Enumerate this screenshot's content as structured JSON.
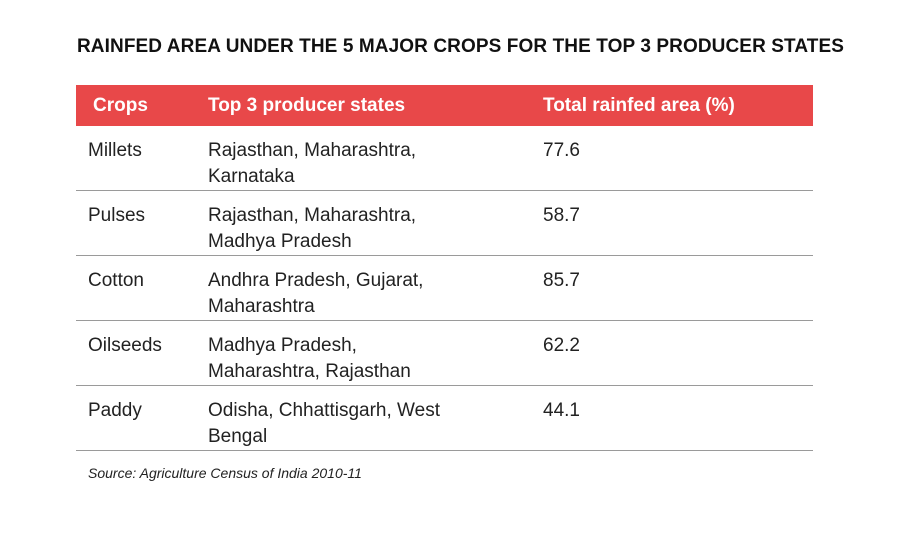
{
  "title": "RAINFED AREA UNDER THE 5 MAJOR CROPS FOR THE TOP 3 PRODUCER STATES",
  "source": "Source: Agriculture Census of India 2010-11",
  "colors": {
    "header_bg": "#e84849",
    "header_text": "#ffffff",
    "divider": "#9a9a9a"
  },
  "chart_data": {
    "type": "table",
    "title": "RAINFED AREA UNDER THE 5 MAJOR CROPS FOR THE TOP 3 PRODUCER STATES",
    "columns": [
      "Crops",
      "Top 3 producer states",
      "Total rainfed area (%)"
    ],
    "rows": [
      {
        "crop": "Millets",
        "states_line1": "Rajasthan, Maharashtra,",
        "states_line2": "Karnataka",
        "area": "77.6"
      },
      {
        "crop": "Pulses",
        "states_line1": "Rajasthan, Maharashtra,",
        "states_line2": "Madhya Pradesh",
        "area": "58.7"
      },
      {
        "crop": "Cotton",
        "states_line1": "Andhra Pradesh, Gujarat,",
        "states_line2": "Maharashtra",
        "area": "85.7"
      },
      {
        "crop": "Oilseeds",
        "states_line1": "Madhya Pradesh,",
        "states_line2": "Maharashtra, Rajasthan",
        "area": "62.2"
      },
      {
        "crop": "Paddy",
        "states_line1": "Odisha, Chhattisgarh, West",
        "states_line2": "Bengal",
        "area": "44.1"
      }
    ],
    "values": [
      77.6,
      58.7,
      85.7,
      62.2,
      44.1
    ],
    "categories": [
      "Millets",
      "Pulses",
      "Cotton",
      "Oilseeds",
      "Paddy"
    ]
  }
}
